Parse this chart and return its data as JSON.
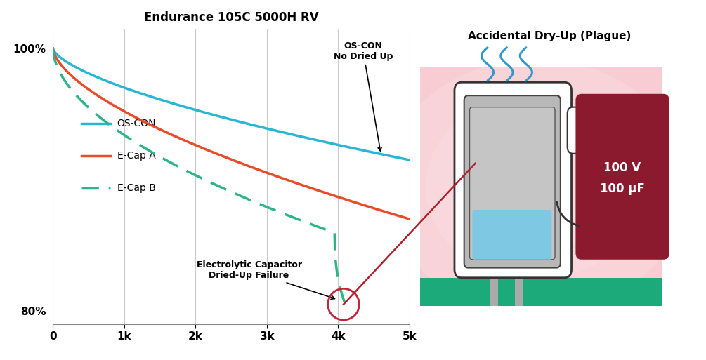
{
  "title": "Endurance 105C 5000H RV",
  "title_fontsize": 12,
  "title_fontweight": "bold",
  "xlim": [
    0,
    5000
  ],
  "ylim": [
    79,
    101.5
  ],
  "xticks": [
    0,
    1000,
    2000,
    3000,
    4000,
    5000
  ],
  "xticklabels": [
    "0",
    "1k",
    "2k",
    "3k",
    "4k",
    "5k"
  ],
  "yticks": [
    80,
    100
  ],
  "yticklabels": [
    "80%",
    "100%"
  ],
  "bg_color": "#ffffff",
  "grid_color": "#cccccc",
  "oscon_color": "#29b6d5",
  "ecapa_color": "#e84c2b",
  "ecapb_color": "#2db586",
  "legend_labels": [
    "OS-CON",
    "E-Cap A",
    "E-Cap B"
  ],
  "oscon_note": "OS-CON\nNo Dried Up",
  "failure_note": "Electrolytic Capacitor\nDried-Up Failure",
  "right_title": "Accidental Dry-Up (Plague)",
  "right_label": "100 V\n100 μF",
  "right_label_bg": "#8b1a2e",
  "right_bg_color": "#f0b8c0",
  "board_color": "#1daa7a",
  "red_circle_color": "#c0273a",
  "red_line_color": "#b0202a"
}
